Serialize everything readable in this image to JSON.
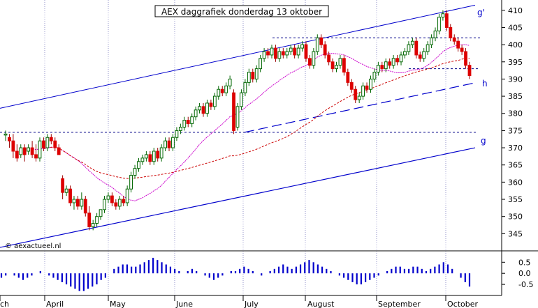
{
  "chart_data": {
    "type": "candlestick",
    "title": "AEX daggrafiek donderdag 13 oktober",
    "credit": "© aexactueel.nl",
    "ylim": [
      340,
      413
    ],
    "yticks": [
      345,
      350,
      355,
      360,
      365,
      370,
      375,
      380,
      385,
      390,
      395,
      400,
      405,
      410
    ],
    "month_labels": [
      "ch",
      "April",
      "May",
      "June",
      "July",
      "August",
      "September",
      "October"
    ],
    "line_labels": {
      "upper": "g'",
      "middle": "h",
      "lower": "g"
    },
    "oscillator": {
      "yticks": [
        0.5,
        0.0,
        -0.5
      ],
      "tick_labels": [
        "0.5",
        "0.0",
        "-0.5"
      ],
      "values": [
        -0.2,
        -0.1,
        0.0,
        -0.1,
        -0.2,
        -0.3,
        -0.2,
        -0.1,
        0.0,
        0.1,
        0.0,
        -0.1,
        -0.2,
        -0.3,
        -0.4,
        -0.5,
        -0.6,
        -0.7,
        -0.8,
        -0.8,
        -0.7,
        -0.6,
        -0.5,
        -0.3,
        -0.2,
        0.0,
        0.2,
        0.3,
        0.4,
        0.4,
        0.3,
        0.3,
        0.4,
        0.5,
        0.6,
        0.7,
        0.6,
        0.5,
        0.4,
        0.3,
        0.2,
        0.1,
        0.0,
        0.1,
        0.2,
        0.1,
        0.0,
        -0.1,
        -0.2,
        -0.3,
        -0.2,
        -0.1,
        0.0,
        0.1,
        0.1,
        0.2,
        0.3,
        0.2,
        0.1,
        0.0,
        -0.1,
        0.0,
        0.1,
        0.2,
        0.3,
        0.4,
        0.3,
        0.2,
        0.3,
        0.4,
        0.5,
        0.6,
        0.5,
        0.4,
        0.3,
        0.2,
        0.1,
        0.0,
        -0.1,
        -0.2,
        -0.3,
        -0.4,
        -0.5,
        -0.5,
        -0.4,
        -0.3,
        -0.2,
        -0.1,
        0.0,
        0.1,
        0.2,
        0.3,
        0.3,
        0.2,
        0.2,
        0.3,
        0.3,
        0.2,
        0.1,
        0.2,
        0.3,
        0.4,
        0.5,
        0.4,
        0.2,
        0.0,
        -0.2,
        -0.4,
        -0.6
      ]
    },
    "candles": [
      [
        374,
        374,
        372,
        375
      ],
      [
        373,
        372,
        370,
        374
      ],
      [
        372,
        369,
        367,
        374
      ],
      [
        369,
        367,
        366,
        371
      ],
      [
        368,
        370,
        367,
        371
      ],
      [
        370,
        368,
        366,
        371
      ],
      [
        369,
        370,
        368,
        371
      ],
      [
        370,
        368,
        367,
        372
      ],
      [
        368,
        367,
        366,
        371
      ],
      [
        367,
        372,
        366,
        373
      ],
      [
        372,
        370,
        369,
        373
      ],
      [
        370,
        373,
        369,
        374
      ],
      [
        373,
        372,
        371,
        374
      ],
      [
        372,
        370,
        369,
        373
      ],
      [
        370,
        368,
        368,
        371
      ],
      [
        361,
        357,
        355,
        362
      ],
      [
        357,
        358,
        356,
        359
      ],
      [
        358,
        354,
        353,
        359
      ],
      [
        354,
        355,
        352,
        356
      ],
      [
        355,
        353,
        352,
        356
      ],
      [
        353,
        355,
        352,
        357
      ],
      [
        355,
        351,
        350,
        356
      ],
      [
        351,
        347,
        346,
        353
      ],
      [
        347,
        348,
        346,
        349
      ],
      [
        348,
        350,
        347,
        351
      ],
      [
        350,
        352,
        349,
        352
      ],
      [
        352,
        355,
        351,
        356
      ],
      [
        355,
        356,
        354,
        357
      ],
      [
        356,
        354,
        353,
        357
      ],
      [
        354,
        353,
        352,
        355
      ],
      [
        353,
        355,
        352,
        356
      ],
      [
        355,
        354,
        353,
        356
      ],
      [
        354,
        358,
        353,
        359
      ],
      [
        358,
        362,
        357,
        363
      ],
      [
        362,
        364,
        361,
        365
      ],
      [
        364,
        366,
        363,
        367
      ],
      [
        366,
        367,
        365,
        368
      ],
      [
        367,
        368,
        366,
        369
      ],
      [
        368,
        366,
        365,
        369
      ],
      [
        366,
        369,
        365,
        370
      ],
      [
        369,
        367,
        366,
        370
      ],
      [
        367,
        370,
        366,
        371
      ],
      [
        370,
        372,
        369,
        373
      ],
      [
        372,
        370,
        369,
        373
      ],
      [
        370,
        373,
        369,
        374
      ],
      [
        373,
        375,
        372,
        376
      ],
      [
        375,
        376,
        374,
        377
      ],
      [
        376,
        378,
        375,
        379
      ],
      [
        378,
        377,
        376,
        379
      ],
      [
        377,
        379,
        376,
        380
      ],
      [
        379,
        381,
        378,
        382
      ],
      [
        381,
        382,
        380,
        383
      ],
      [
        382,
        380,
        379,
        383
      ],
      [
        380,
        383,
        379,
        384
      ],
      [
        383,
        382,
        381,
        384
      ],
      [
        382,
        385,
        381,
        386
      ],
      [
        385,
        387,
        384,
        388
      ],
      [
        387,
        386,
        385,
        388
      ],
      [
        386,
        388,
        385,
        389
      ],
      [
        388,
        390,
        387,
        391
      ],
      [
        386,
        375,
        374,
        387
      ],
      [
        376,
        382,
        375,
        383
      ],
      [
        382,
        386,
        381,
        387
      ],
      [
        386,
        389,
        385,
        390
      ],
      [
        389,
        392,
        388,
        393
      ],
      [
        392,
        390,
        389,
        393
      ],
      [
        390,
        393,
        389,
        394
      ],
      [
        393,
        396,
        392,
        397
      ],
      [
        396,
        398,
        395,
        399
      ],
      [
        398,
        397,
        396,
        399
      ],
      [
        397,
        399,
        396,
        400
      ],
      [
        399,
        396,
        395,
        400
      ],
      [
        396,
        398,
        395,
        399
      ],
      [
        398,
        397,
        396,
        399
      ],
      [
        397,
        398,
        396,
        399
      ],
      [
        398,
        399,
        397,
        400
      ],
      [
        399,
        397,
        396,
        400
      ],
      [
        397,
        399,
        396,
        400
      ],
      [
        399,
        400,
        398,
        401
      ],
      [
        400,
        396,
        395,
        401
      ],
      [
        396,
        394,
        393,
        397
      ],
      [
        394,
        398,
        393,
        399
      ],
      [
        398,
        402,
        397,
        403
      ],
      [
        402,
        400,
        399,
        403
      ],
      [
        400,
        397,
        396,
        401
      ],
      [
        397,
        395,
        394,
        398
      ],
      [
        395,
        393,
        392,
        396
      ],
      [
        393,
        394,
        392,
        395
      ],
      [
        394,
        396,
        393,
        397
      ],
      [
        396,
        392,
        391,
        397
      ],
      [
        392,
        389,
        388,
        393
      ],
      [
        389,
        387,
        386,
        390
      ],
      [
        387,
        384,
        383,
        388
      ],
      [
        384,
        385,
        383,
        386
      ],
      [
        385,
        388,
        384,
        389
      ],
      [
        388,
        387,
        386,
        389
      ],
      [
        387,
        390,
        386,
        391
      ],
      [
        390,
        392,
        389,
        393
      ],
      [
        392,
        394,
        391,
        395
      ],
      [
        394,
        393,
        392,
        395
      ],
      [
        393,
        395,
        392,
        396
      ],
      [
        395,
        394,
        393,
        396
      ],
      [
        394,
        396,
        393,
        397
      ],
      [
        396,
        395,
        394,
        397
      ],
      [
        395,
        397,
        394,
        398
      ],
      [
        397,
        398,
        396,
        399
      ],
      [
        398,
        400,
        397,
        401
      ],
      [
        400,
        401,
        399,
        402
      ],
      [
        401,
        397,
        396,
        402
      ],
      [
        397,
        396,
        395,
        398
      ],
      [
        396,
        398,
        395,
        399
      ],
      [
        398,
        400,
        397,
        401
      ],
      [
        400,
        402,
        399,
        403
      ],
      [
        402,
        404,
        401,
        405
      ],
      [
        404,
        408,
        403,
        409
      ],
      [
        408,
        409,
        407,
        410
      ],
      [
        409,
        405,
        404,
        410
      ],
      [
        405,
        402,
        401,
        406
      ],
      [
        402,
        401,
        400,
        403
      ],
      [
        401,
        399,
        398,
        402
      ],
      [
        399,
        398,
        397,
        400
      ],
      [
        398,
        394,
        393,
        399
      ],
      [
        394,
        391,
        390,
        395
      ]
    ]
  }
}
